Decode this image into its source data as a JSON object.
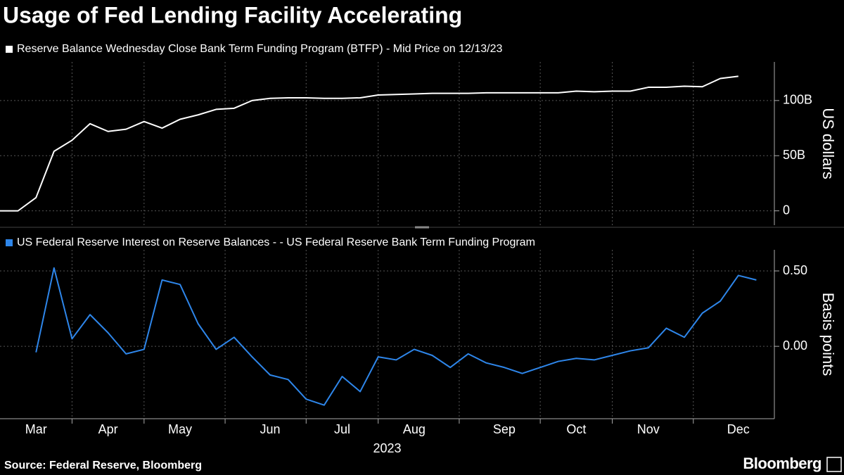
{
  "title": "Usage of Fed Lending Facility Accelerating",
  "source": "Source: Federal Reserve, Bloomberg",
  "brand": "Bloomberg",
  "chart_data": [
    {
      "type": "line",
      "ylabel": "US dollars",
      "ylim": [
        -13,
        135
      ],
      "yticks": [
        0,
        {
          "value": 50,
          "label": "50B"
        },
        {
          "value": 100,
          "label": "100B"
        }
      ],
      "grid": true,
      "series": [
        {
          "name": "Reserve Balance Wednesday Close Bank Term Funding Program (BTFP) - Mid Price on 12/13/23",
          "color": "#ffffff",
          "values": [
            0,
            0,
            12,
            54,
            64,
            79,
            72,
            74,
            81,
            75,
            83,
            87,
            92,
            93,
            100,
            102,
            102.5,
            102.5,
            102,
            102,
            102.5,
            105,
            105.5,
            106,
            106.5,
            106.5,
            106.5,
            107,
            107,
            107,
            107,
            107,
            108.5,
            108,
            108.5,
            108.5,
            112,
            112,
            113,
            112.5,
            120,
            122,
            null
          ]
        }
      ]
    },
    {
      "type": "line",
      "ylabel": "Basis points",
      "xlabel": "2023",
      "categories": [
        null,
        null,
        "Mar",
        null,
        null,
        null,
        "Apr",
        null,
        null,
        null,
        "May",
        null,
        null,
        null,
        null,
        "Jun",
        null,
        null,
        null,
        "Jul",
        null,
        null,
        null,
        "Aug",
        null,
        null,
        null,
        null,
        "Sep",
        null,
        null,
        null,
        "Oct",
        null,
        null,
        null,
        "Nov",
        null,
        null,
        null,
        null,
        "Dec",
        null
      ],
      "ylim": [
        -0.48,
        0.64
      ],
      "yticks": [
        {
          "value": 0,
          "label": "0.00"
        },
        {
          "value": 0.5,
          "label": "0.50"
        }
      ],
      "grid": true,
      "series": [
        {
          "name": "US Federal Reserve Interest on Reserve Balances - - US Federal Reserve Bank Term Funding Program",
          "color": "#2e86ea",
          "values": [
            null,
            null,
            -0.04,
            0.52,
            0.05,
            0.21,
            0.09,
            -0.05,
            -0.02,
            0.44,
            0.41,
            0.15,
            -0.02,
            0.06,
            -0.07,
            -0.19,
            -0.22,
            -0.35,
            -0.39,
            -0.2,
            -0.3,
            -0.07,
            -0.09,
            -0.02,
            -0.06,
            -0.14,
            -0.05,
            -0.11,
            -0.14,
            -0.18,
            -0.14,
            -0.1,
            -0.08,
            -0.09,
            -0.06,
            -0.03,
            -0.01,
            0.12,
            0.06,
            0.22,
            0.3,
            0.47,
            0.44
          ]
        }
      ]
    }
  ]
}
